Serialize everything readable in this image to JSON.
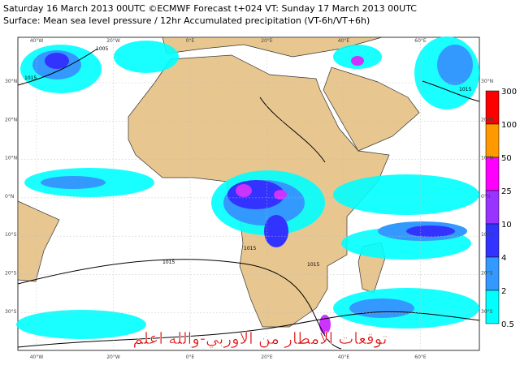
{
  "header": {
    "line1": "Saturday 16 March 2013 00UTC ©ECMWF Forecast t+024 VT: Sunday 17 March 2013 00UTC",
    "line2": "Surface: Mean sea level pressure / 12hr Accumulated precipitation (VT-6h/VT+6h)"
  },
  "map": {
    "lon_labels": [
      "40°W",
      "20°W",
      "0°E",
      "20°E",
      "40°E",
      "60°E"
    ],
    "lat_labels": [
      "30°N",
      "20°N",
      "10°N",
      "0°N",
      "10°S",
      "20°S",
      "30°S"
    ],
    "isobar_labels": [
      "1005",
      "1015",
      "1015",
      "1015",
      "1015",
      "1015"
    ],
    "overlay_text": "توقعات الامطار من الاوربي-والله اعلم"
  },
  "colorbar": {
    "labels": [
      "300",
      "100",
      "50",
      "25",
      "10",
      "4",
      "2",
      "0.5"
    ],
    "colors": [
      "#ff0000",
      "#ff9900",
      "#ff00ff",
      "#9933ff",
      "#3333ff",
      "#3399ff",
      "#00ffff"
    ]
  }
}
